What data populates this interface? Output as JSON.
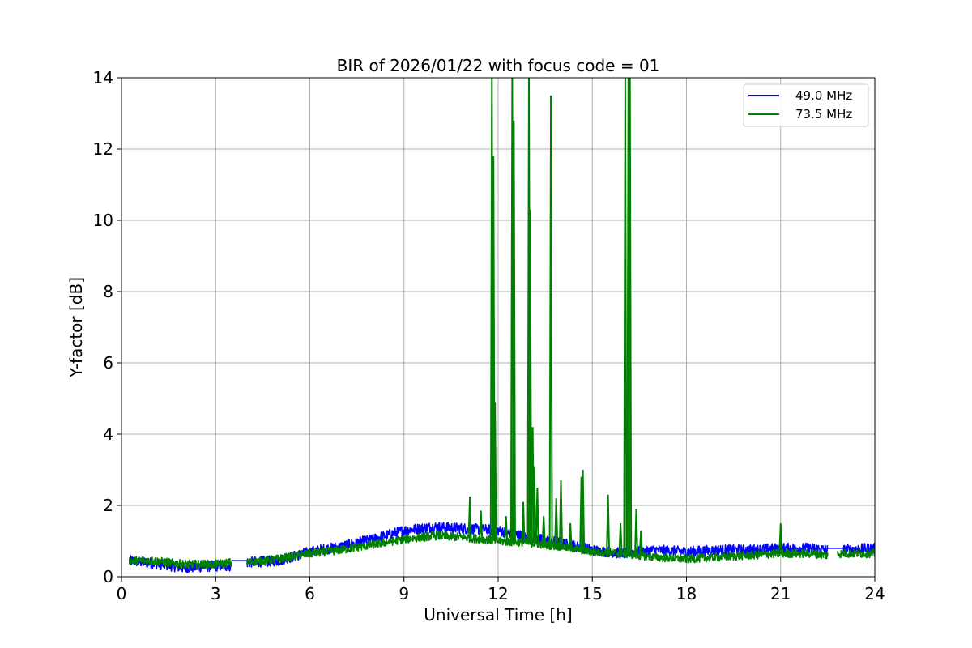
{
  "chart_data": {
    "type": "line",
    "title": "BIR of 2026/01/22 with focus code = 01",
    "xlabel": "Universal Time [h]",
    "ylabel": "Y-factor [dB]",
    "xlim": [
      0,
      24
    ],
    "ylim": [
      0,
      14
    ],
    "xticks": [
      0,
      3,
      6,
      9,
      12,
      15,
      18,
      21,
      24
    ],
    "yticks": [
      0,
      2,
      4,
      6,
      8,
      10,
      12,
      14
    ],
    "grid": true,
    "legend_position": "top-right",
    "series": [
      {
        "name": "49.0 MHz",
        "color": "#0000ff",
        "segments": [
          {
            "x": [
              0.25,
              1.0,
              2.0,
              3.0,
              3.5
            ],
            "y": [
              0.45,
              0.38,
              0.25,
              0.3,
              0.3
            ]
          },
          {
            "x": [
              3.5,
              4.0
            ],
            "y": [
              0.45,
              0.45
            ]
          },
          {
            "x": [
              4.0,
              5.0,
              6.0,
              7.0,
              8.0,
              9.0,
              10.0,
              11.0,
              12.0,
              13.0,
              14.0,
              15.0,
              16.0,
              17.0,
              18.0,
              19.0,
              20.0,
              21.0,
              22.0,
              22.5
            ],
            "y": [
              0.4,
              0.45,
              0.7,
              0.85,
              1.05,
              1.3,
              1.4,
              1.35,
              1.3,
              1.1,
              0.95,
              0.75,
              0.65,
              0.75,
              0.7,
              0.75,
              0.75,
              0.8,
              0.8,
              0.75
            ]
          },
          {
            "x": [
              22.5,
              23.0
            ],
            "y": [
              0.8,
              0.8
            ]
          },
          {
            "x": [
              23.0,
              24.0
            ],
            "y": [
              0.75,
              0.8
            ]
          }
        ],
        "noise": 0.15
      },
      {
        "name": "73.5 MHz",
        "color": "#008000",
        "segments": [
          {
            "x": [
              0.25,
              1.0,
              2.0,
              3.0,
              3.5
            ],
            "y": [
              0.45,
              0.45,
              0.35,
              0.35,
              0.4
            ]
          },
          {
            "x": [
              4.0,
              5.0,
              6.0,
              7.0,
              8.0,
              9.0,
              10.0,
              11.0,
              12.0,
              13.0,
              14.0,
              15.0,
              16.0,
              17.0,
              18.0,
              19.0,
              20.0,
              21.0,
              22.0,
              22.5
            ],
            "y": [
              0.4,
              0.5,
              0.65,
              0.75,
              0.9,
              1.05,
              1.15,
              1.1,
              1.0,
              0.95,
              0.85,
              0.7,
              0.65,
              0.55,
              0.5,
              0.55,
              0.6,
              0.65,
              0.65,
              0.6
            ]
          },
          {
            "x": [
              22.8,
              24.0
            ],
            "y": [
              0.65,
              0.65
            ]
          }
        ],
        "noise": 0.12,
        "spikes": [
          {
            "x": 11.1,
            "y": 2.25
          },
          {
            "x": 11.45,
            "y": 1.85
          },
          {
            "x": 11.8,
            "y": 14.0
          },
          {
            "x": 11.85,
            "y": 11.8
          },
          {
            "x": 11.9,
            "y": 4.9
          },
          {
            "x": 12.25,
            "y": 1.7
          },
          {
            "x": 12.45,
            "y": 14.0
          },
          {
            "x": 12.5,
            "y": 12.8
          },
          {
            "x": 12.8,
            "y": 2.1
          },
          {
            "x": 12.98,
            "y": 14.0
          },
          {
            "x": 13.02,
            "y": 10.3
          },
          {
            "x": 13.1,
            "y": 4.2
          },
          {
            "x": 13.15,
            "y": 3.1
          },
          {
            "x": 13.25,
            "y": 2.5
          },
          {
            "x": 13.45,
            "y": 1.7
          },
          {
            "x": 13.68,
            "y": 13.5
          },
          {
            "x": 13.85,
            "y": 2.2
          },
          {
            "x": 14.0,
            "y": 2.7
          },
          {
            "x": 14.3,
            "y": 1.5
          },
          {
            "x": 14.65,
            "y": 2.8
          },
          {
            "x": 14.7,
            "y": 3.0
          },
          {
            "x": 15.5,
            "y": 2.3
          },
          {
            "x": 15.9,
            "y": 1.5
          },
          {
            "x": 16.05,
            "y": 14.0
          },
          {
            "x": 16.15,
            "y": 14.0
          },
          {
            "x": 16.2,
            "y": 14.0
          },
          {
            "x": 16.4,
            "y": 1.9
          },
          {
            "x": 16.55,
            "y": 1.3
          },
          {
            "x": 21.0,
            "y": 1.5
          }
        ]
      }
    ]
  }
}
